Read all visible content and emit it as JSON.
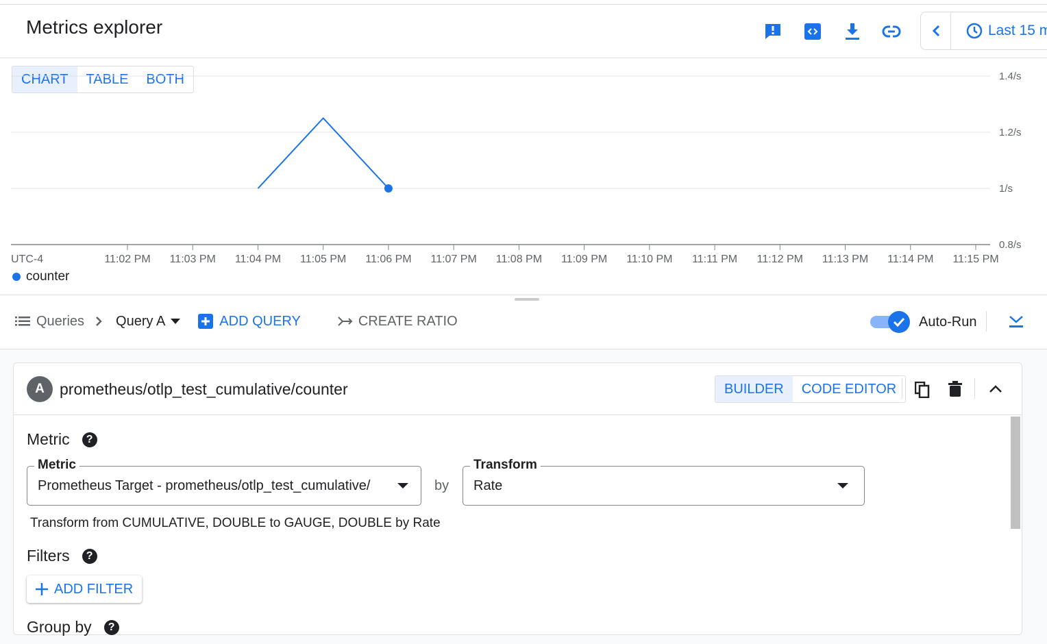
{
  "header": {
    "title": "Metrics explorer",
    "time_range": "Last 15 m",
    "icons": [
      "feedback-icon",
      "code-icon",
      "download-icon",
      "link-icon"
    ]
  },
  "view_tabs": [
    {
      "label": "CHART",
      "active": true
    },
    {
      "label": "TABLE",
      "active": false
    },
    {
      "label": "BOTH",
      "active": false
    }
  ],
  "chart_data": {
    "type": "line",
    "timezone": "UTC-4",
    "x_ticks": [
      "11:02 PM",
      "11:03 PM",
      "11:04 PM",
      "11:05 PM",
      "11:06 PM",
      "11:07 PM",
      "11:08 PM",
      "11:09 PM",
      "11:10 PM",
      "11:11 PM",
      "11:12 PM",
      "11:13 PM",
      "11:14 PM",
      "11:15 PM"
    ],
    "y_ticks": [
      "0.8/s",
      "1/s",
      "1.2/s",
      "1.4/s"
    ],
    "ylim": [
      0.8,
      1.4
    ],
    "grid": true,
    "series": [
      {
        "name": "counter",
        "color": "#1a73e8",
        "x": [
          "11:04 PM",
          "11:05 PM",
          "11:06 PM"
        ],
        "values": [
          1.0,
          1.25,
          1.0
        ]
      }
    ],
    "legend_position": "bottom-left"
  },
  "query_bar": {
    "queries_label": "Queries",
    "query_name": "Query A",
    "add_query": "ADD QUERY",
    "create_ratio": "CREATE RATIO",
    "auto_run": "Auto-Run",
    "auto_run_on": true
  },
  "query_card": {
    "badge": "A",
    "metric_title": "prometheus/otlp_test_cumulative/counter",
    "modes": [
      {
        "label": "BUILDER",
        "active": true
      },
      {
        "label": "CODE EDITOR",
        "active": false
      }
    ],
    "metric_section": "Metric",
    "metric_field_label": "Metric",
    "metric_field_value": "Prometheus Target - prometheus/otlp_test_cumulative/",
    "by": "by",
    "transform_label": "Transform",
    "transform_value": "Rate",
    "transform_note": "Transform from CUMULATIVE, DOUBLE to GAUGE, DOUBLE by Rate",
    "filters_section": "Filters",
    "add_filter": "ADD FILTER",
    "groupby_section": "Group by"
  }
}
